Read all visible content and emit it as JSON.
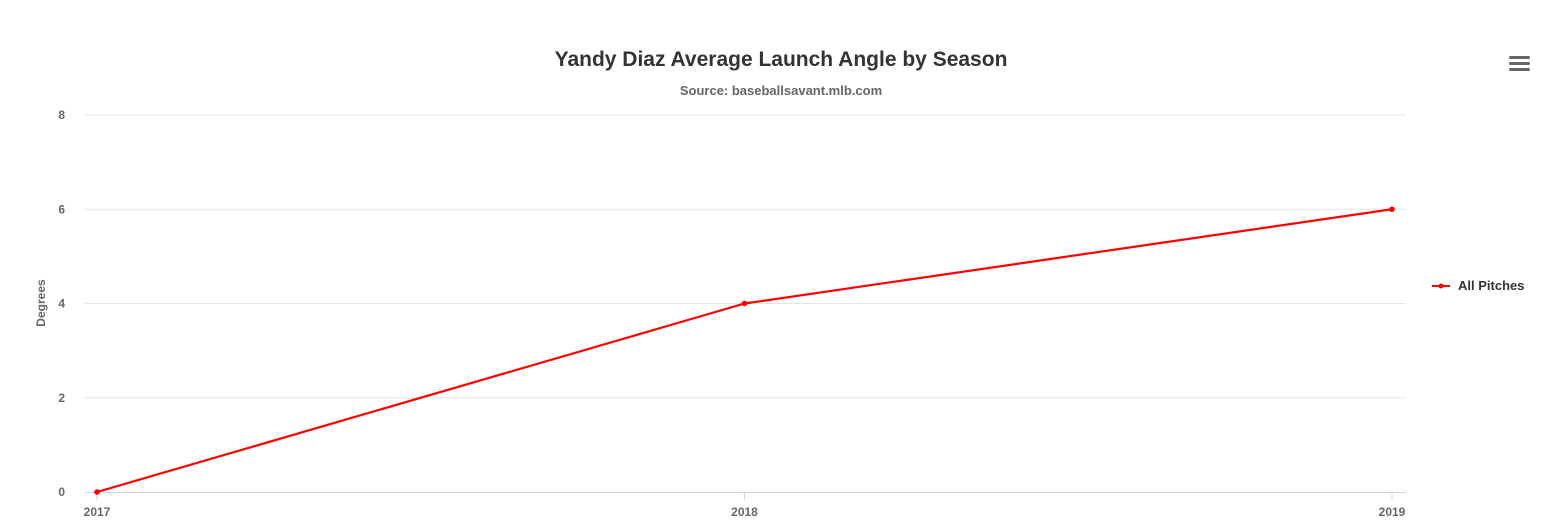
{
  "chart_data": {
    "type": "line",
    "title": "Yandy Diaz Average Launch Angle by Season",
    "subtitle": "Source: baseballsavant.mlb.com",
    "xlabel": "",
    "ylabel": "Degrees",
    "categories": [
      "2017",
      "2018",
      "2019"
    ],
    "series": [
      {
        "name": "All Pitches",
        "values": [
          0,
          4,
          6
        ],
        "color": "#ff0000"
      }
    ],
    "ylim": [
      0,
      8
    ],
    "yticks": [
      0,
      2,
      4,
      6,
      8
    ],
    "grid": true,
    "legend_position": "right"
  },
  "toolbar": {
    "menu_icon": "hamburger-menu-icon"
  }
}
